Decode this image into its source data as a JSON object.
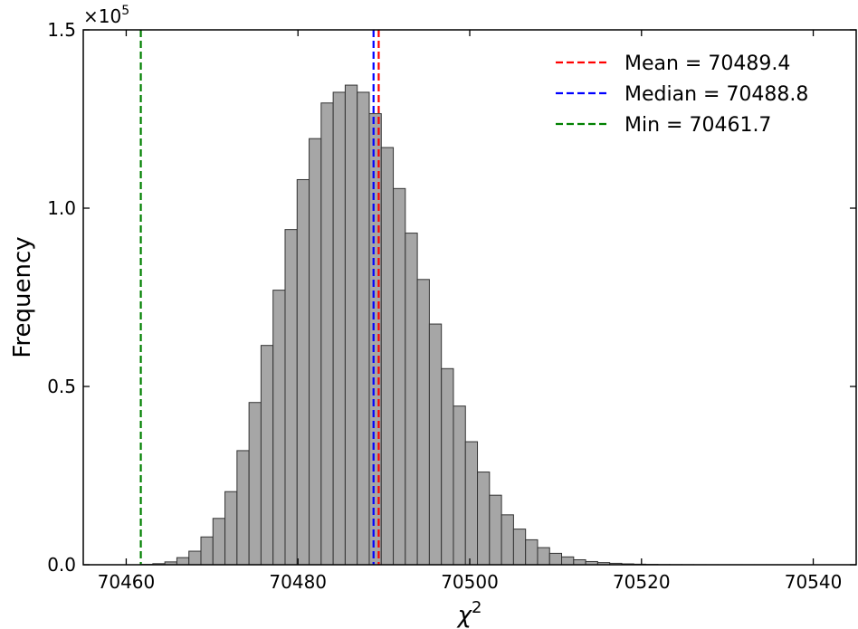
{
  "chart_data": {
    "type": "bar",
    "title": "",
    "xlabel": "χ",
    "xlabel_superscript": "2",
    "ylabel": "Frequency",
    "y_multiplier_base": "×10",
    "y_multiplier_exp": "5",
    "xlim": [
      70455,
      70545
    ],
    "ylim": [
      0,
      150000
    ],
    "xticks": [
      70460,
      70480,
      70500,
      70520,
      70540
    ],
    "yticks": [
      0,
      50000,
      100000,
      150000
    ],
    "ytick_labels": [
      "0.0",
      "0.5",
      "1.0",
      "1.5"
    ],
    "bin_start": 70461.7,
    "bin_width": 1.4,
    "values": [
      100,
      300,
      800,
      2000,
      3800,
      7800,
      13000,
      20500,
      32000,
      45500,
      61500,
      77000,
      94000,
      108000,
      119500,
      129500,
      132500,
      134500,
      132500,
      126500,
      117000,
      105500,
      93000,
      80000,
      67500,
      55000,
      44500,
      34500,
      26000,
      19500,
      14000,
      10000,
      7000,
      4800,
      3200,
      2200,
      1400,
      900,
      600,
      400,
      250,
      160,
      100,
      60,
      40,
      25,
      15,
      10,
      6,
      4,
      2,
      1,
      1,
      1
    ],
    "bar_color": "#a6a6a6",
    "bar_edge_color": "#333333",
    "vlines": [
      {
        "name": "Mean",
        "label": "Mean = 70489.4",
        "x": 70489.4,
        "color": "#ff0000"
      },
      {
        "name": "Median",
        "label": "Median = 70488.8",
        "x": 70488.8,
        "color": "#0000ff"
      },
      {
        "name": "Min",
        "label": "Min = 70461.7",
        "x": 70461.7,
        "color": "#008000"
      }
    ],
    "legend_position": "top-right",
    "grid": false
  }
}
